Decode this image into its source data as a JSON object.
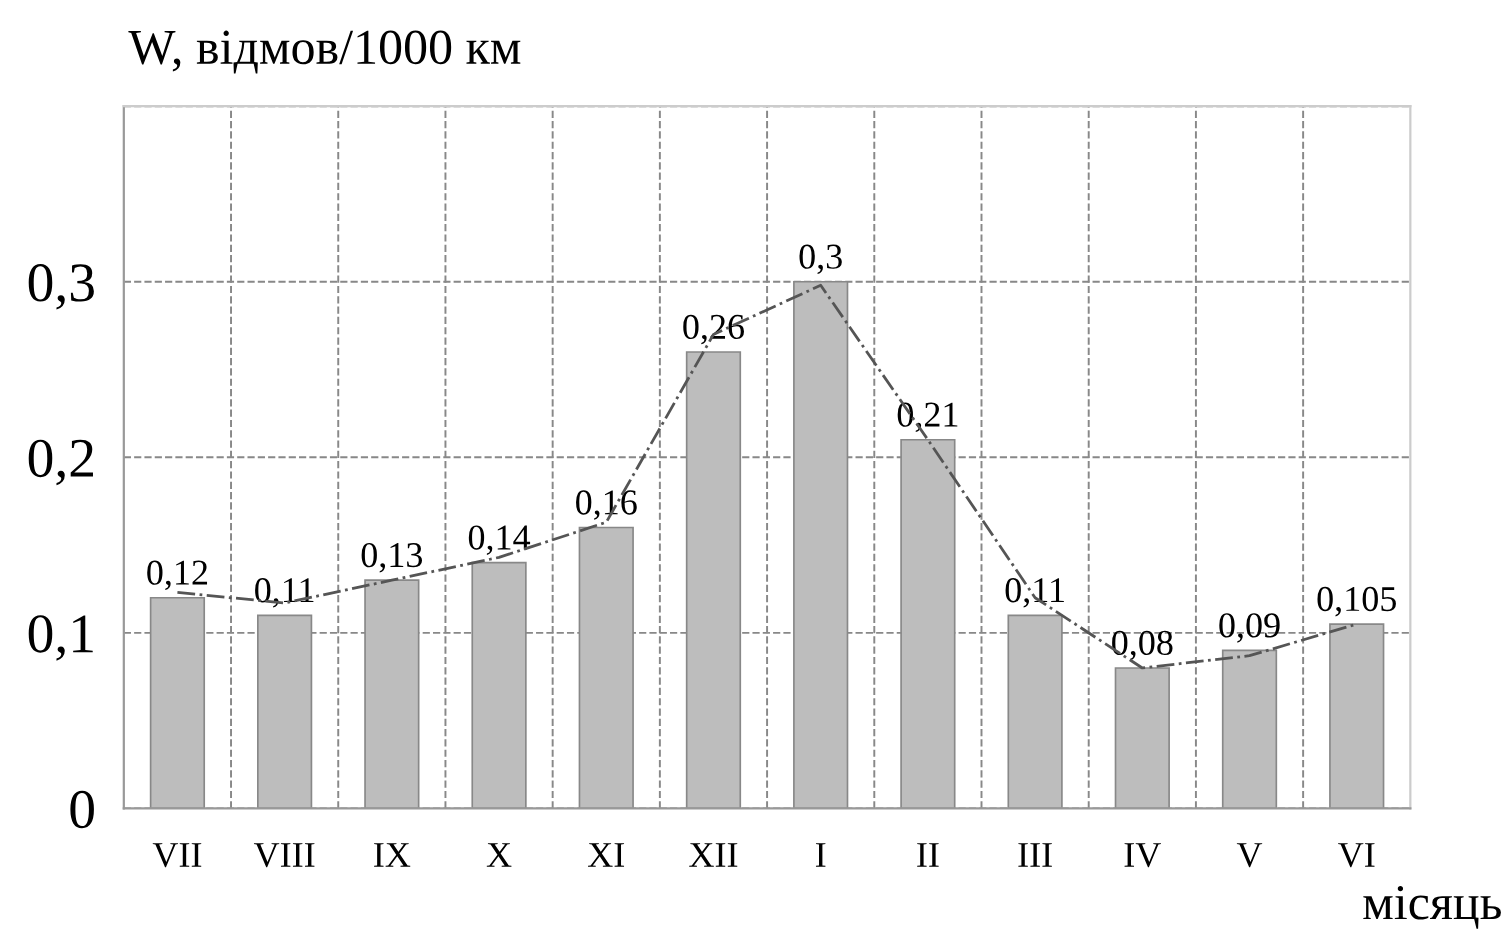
{
  "chart_data": {
    "type": "bar",
    "ylabel": "W, відмов/1000 км",
    "xlabel": "місяць",
    "categories": [
      "VII",
      "VIII",
      "IX",
      "X",
      "XI",
      "XII",
      "I",
      "II",
      "III",
      "IV",
      "V",
      "VI"
    ],
    "series": [
      {
        "color": "#bdbdbd",
        "values": [
          0.12,
          0.11,
          0.13,
          0.14,
          0.16,
          0.26,
          0.3,
          0.21,
          0.11,
          0.08,
          0.09,
          0.105
        ],
        "value_labels": [
          "0,12",
          "0,11",
          "0,13",
          "0,14",
          "0,16",
          "0,26",
          "0,3",
          "0,21",
          "0,11",
          "0,08",
          "0,09",
          "0,105"
        ]
      },
      {
        "type": "line",
        "color": "#555555",
        "line_style": "dashdot",
        "values": [
          0.123,
          0.117,
          0.13,
          0.143,
          0.163,
          0.27,
          0.298,
          0.21,
          0.12,
          0.08,
          0.087,
          0.105
        ]
      }
    ],
    "ylim": [
      0,
      0.4
    ],
    "yticks": [
      0,
      {
        "value": 0.1,
        "label": "0,1"
      },
      {
        "value": 0.2,
        "label": "0,2"
      },
      {
        "value": 0.3,
        "label": "0,3"
      },
      {
        "value": 0.4,
        "label": null
      }
    ],
    "grid": true,
    "legend": false
  }
}
